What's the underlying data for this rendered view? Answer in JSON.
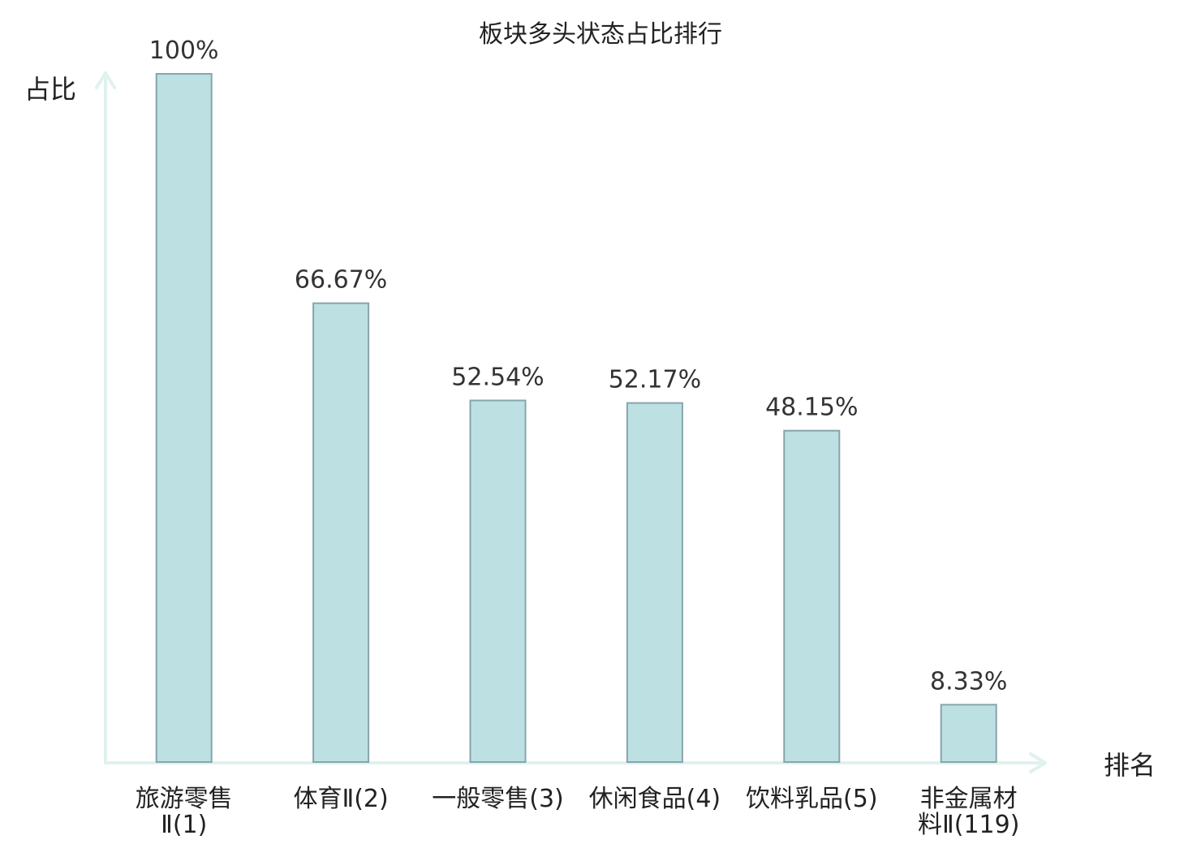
{
  "chart_data": {
    "type": "bar",
    "title": "板块多头状态占比排行",
    "ylabel": "占比",
    "xlabel": "排名",
    "ylim": [
      0,
      100
    ],
    "grid": false,
    "categories": [
      {
        "lines": [
          "旅游零售",
          "Ⅱ(1)"
        ],
        "highlight": false
      },
      {
        "lines": [
          "体育Ⅱ(2)"
        ],
        "highlight": false
      },
      {
        "lines": [
          "一般零售(3)"
        ],
        "highlight": false
      },
      {
        "lines": [
          "休闲食品(4)"
        ],
        "highlight": false
      },
      {
        "lines": [
          "饮料乳品(5)"
        ],
        "highlight": false
      },
      {
        "lines": [
          "非金属材",
          "料Ⅱ(119)"
        ],
        "highlight": true
      }
    ],
    "values": [
      100,
      66.67,
      52.54,
      52.17,
      48.15,
      8.33
    ],
    "value_labels": [
      "100%",
      "66.67%",
      "52.54%",
      "52.17%",
      "48.15%",
      "8.33%"
    ]
  },
  "colors": {
    "bar_fill": "#bde0e3",
    "bar_stroke": "#86a5aa",
    "axis": "#e0f1ef",
    "highlight": "#e8141e",
    "text": "#222222"
  }
}
